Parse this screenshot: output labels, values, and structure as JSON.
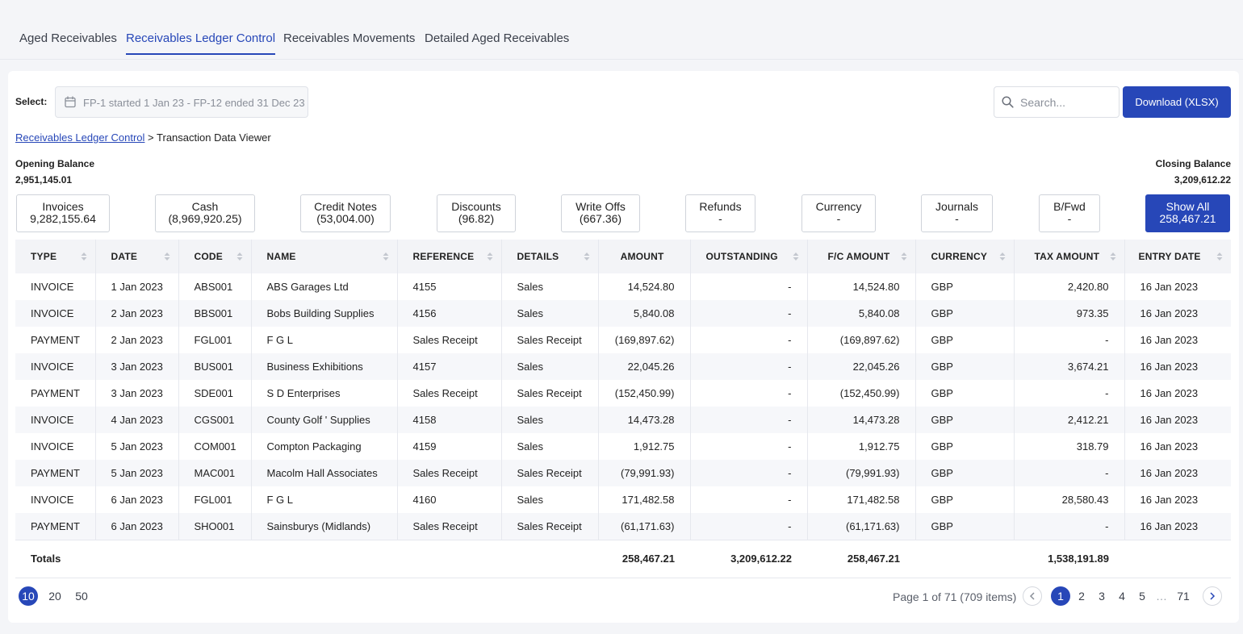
{
  "tabs": [
    "Aged Receivables",
    "Receivables Ledger Control",
    "Receivables Movements",
    "Detailed Aged Receivables"
  ],
  "toolbar": {
    "select_label": "Select:",
    "date_range": "FP-1 started 1 Jan 23 - FP-12 ended 31 Dec 23",
    "search_placeholder": "Search...",
    "download_label": "Download (XLSX)"
  },
  "breadcrumb": {
    "link": "Receivables Ledger Control",
    "separator": " > ",
    "current": "Transaction Data Viewer"
  },
  "balances": {
    "opening_label": "Opening Balance",
    "opening_value": "2,951,145.01",
    "closing_label": "Closing Balance",
    "closing_value": "3,209,612.22"
  },
  "filters": [
    {
      "label": "Invoices",
      "value": "9,282,155.64"
    },
    {
      "label": "Cash",
      "value": "(8,969,920.25)"
    },
    {
      "label": "Credit Notes",
      "value": "(53,004.00)"
    },
    {
      "label": "Discounts",
      "value": "(96.82)"
    },
    {
      "label": "Write Offs",
      "value": "(667.36)"
    },
    {
      "label": "Refunds",
      "value": "-"
    },
    {
      "label": "Currency",
      "value": "-"
    },
    {
      "label": "Journals",
      "value": "-"
    },
    {
      "label": "B/Fwd",
      "value": "-"
    },
    {
      "label": "Show All",
      "value": "258,467.21"
    }
  ],
  "table": {
    "headers": [
      "TYPE",
      "DATE",
      "CODE",
      "NAME",
      "REFERENCE",
      "DETAILS",
      "AMOUNT",
      "OUTSTANDING",
      "F/C AMOUNT",
      "CURRENCY",
      "TAX AMOUNT",
      "ENTRY DATE"
    ],
    "rows": [
      [
        "INVOICE",
        "1 Jan 2023",
        "ABS001",
        "ABS Garages Ltd",
        "4155",
        "Sales",
        "14,524.80",
        "-",
        "14,524.80",
        "GBP",
        "2,420.80",
        "16 Jan 2023"
      ],
      [
        "INVOICE",
        "2 Jan 2023",
        "BBS001",
        "Bobs Building Supplies",
        "4156",
        "Sales",
        "5,840.08",
        "-",
        "5,840.08",
        "GBP",
        "973.35",
        "16 Jan 2023"
      ],
      [
        "PAYMENT",
        "2 Jan 2023",
        "FGL001",
        "F G L",
        "Sales Receipt",
        "Sales Receipt",
        "(169,897.62)",
        "-",
        "(169,897.62)",
        "GBP",
        "-",
        "16 Jan 2023"
      ],
      [
        "INVOICE",
        "3 Jan 2023",
        "BUS001",
        "Business Exhibitions",
        "4157",
        "Sales",
        "22,045.26",
        "-",
        "22,045.26",
        "GBP",
        "3,674.21",
        "16 Jan 2023"
      ],
      [
        "PAYMENT",
        "3 Jan 2023",
        "SDE001",
        "S D Enterprises",
        "Sales Receipt",
        "Sales Receipt",
        "(152,450.99)",
        "-",
        "(152,450.99)",
        "GBP",
        "-",
        "16 Jan 2023"
      ],
      [
        "INVOICE",
        "4 Jan 2023",
        "CGS001",
        "County Golf ' Supplies",
        "4158",
        "Sales",
        "14,473.28",
        "-",
        "14,473.28",
        "GBP",
        "2,412.21",
        "16 Jan 2023"
      ],
      [
        "INVOICE",
        "5 Jan 2023",
        "COM001",
        "Compton Packaging",
        "4159",
        "Sales",
        "1,912.75",
        "-",
        "1,912.75",
        "GBP",
        "318.79",
        "16 Jan 2023"
      ],
      [
        "PAYMENT",
        "5 Jan 2023",
        "MAC001",
        "Macolm Hall Associates",
        "Sales Receipt",
        "Sales Receipt",
        "(79,991.93)",
        "-",
        "(79,991.93)",
        "GBP",
        "-",
        "16 Jan 2023"
      ],
      [
        "INVOICE",
        "6 Jan 2023",
        "FGL001",
        "F G L",
        "4160",
        "Sales",
        "171,482.58",
        "-",
        "171,482.58",
        "GBP",
        "28,580.43",
        "16 Jan 2023"
      ],
      [
        "PAYMENT",
        "6 Jan 2023",
        "SHO001",
        "Sainsburys (Midlands)",
        "Sales Receipt",
        "Sales Receipt",
        "(61,171.63)",
        "-",
        "(61,171.63)",
        "GBP",
        "-",
        "16 Jan 2023"
      ]
    ],
    "totals": {
      "label": "Totals",
      "amount": "258,467.21",
      "outstanding": "3,209,612.22",
      "fc_amount": "258,467.21",
      "tax_amount": "1,538,191.89"
    }
  },
  "pagination": {
    "page_sizes": [
      "10",
      "20",
      "50"
    ],
    "info": "Page 1 of 71 (709 items)",
    "pages": [
      "1",
      "2",
      "3",
      "4",
      "5"
    ],
    "ellipsis": "…",
    "last_page": "71"
  },
  "colors": {
    "accent": "#2747b8",
    "header_bg": "#f3f4f7",
    "row_alt": "#f6f7fa"
  }
}
